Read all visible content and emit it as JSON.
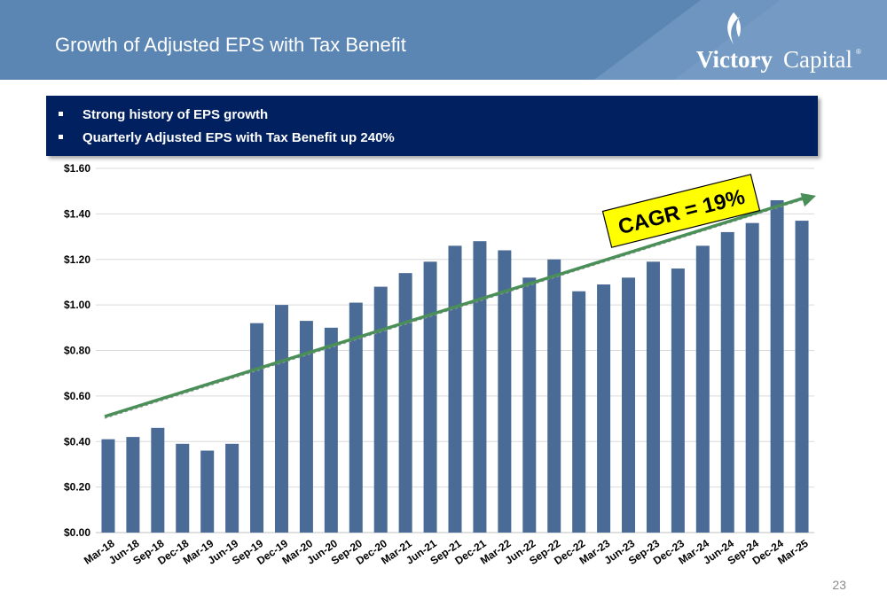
{
  "slide": {
    "title": "Growth of Adjusted EPS with Tax Benefit",
    "page_number": "23",
    "logo_word_bold": "Victory",
    "logo_word_light": "Capital",
    "logo_mark": "®"
  },
  "bullets": [
    "Strong history of EPS growth",
    "Quarterly Adjusted EPS with Tax Benefit up 240%"
  ],
  "colors": {
    "header": "#5b85b3",
    "banner": "#002060",
    "bar": "#4a6b96",
    "trend": "#4a8f57",
    "callout": "#ffff00"
  },
  "chart_data": {
    "type": "bar",
    "categories": [
      "Mar-18",
      "Jun-18",
      "Sep-18",
      "Dec-18",
      "Mar-19",
      "Jun-19",
      "Sep-19",
      "Dec-19",
      "Mar-20",
      "Jun-20",
      "Sep-20",
      "Dec-20",
      "Mar-21",
      "Jun-21",
      "Sep-21",
      "Dec-21",
      "Mar-22",
      "Jun-22",
      "Sep-22",
      "Dec-22",
      "Mar-23",
      "Jun-23",
      "Sep-23",
      "Dec-23",
      "Mar-24",
      "Jun-24",
      "Sep-24",
      "Dec-24",
      "Mar-25"
    ],
    "values": [
      0.41,
      0.42,
      0.46,
      0.39,
      0.36,
      0.39,
      0.92,
      1.0,
      0.93,
      0.9,
      1.01,
      1.08,
      1.14,
      1.19,
      1.26,
      1.28,
      1.24,
      1.12,
      1.2,
      1.06,
      1.09,
      1.12,
      1.19,
      1.16,
      1.26,
      1.32,
      1.36,
      1.46,
      1.37
    ],
    "ylim": [
      0,
      1.6
    ],
    "yticks": [
      "$0.00",
      "$0.20",
      "$0.40",
      "$0.60",
      "$0.80",
      "$1.00",
      "$1.20",
      "$1.40",
      "$1.60"
    ],
    "grid": true,
    "trendline": {
      "start_value": 0.51,
      "end_value": 1.48
    },
    "annotation": "CAGR = 19%"
  }
}
